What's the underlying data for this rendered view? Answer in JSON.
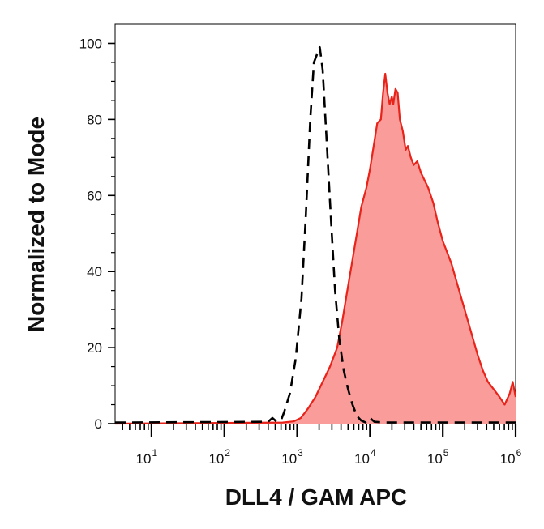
{
  "chart_data": {
    "type": "area",
    "xlabel": "DLL4 / GAM APC",
    "ylabel": "Normalized to Mode",
    "x_scale": "log",
    "xlim": [
      0.5,
      6
    ],
    "ylim": [
      0,
      105
    ],
    "x_ticks": [
      {
        "base": "10",
        "exp": "1"
      },
      {
        "base": "10",
        "exp": "2"
      },
      {
        "base": "10",
        "exp": "3"
      },
      {
        "base": "10",
        "exp": "4"
      },
      {
        "base": "10",
        "exp": "5"
      },
      {
        "base": "10",
        "exp": "6"
      }
    ],
    "y_ticks": [
      "0",
      "20",
      "40",
      "60",
      "80",
      "100"
    ],
    "grid": false,
    "legend": "none",
    "series": [
      {
        "style": "dashed-black-outline",
        "color": "#000000",
        "points": [
          [
            0.5,
            0.3
          ],
          [
            2.6,
            0.5
          ],
          [
            2.66,
            1.5
          ],
          [
            2.72,
            0.5
          ],
          [
            2.78,
            1
          ],
          [
            2.82,
            3
          ],
          [
            2.9,
            8
          ],
          [
            2.98,
            17
          ],
          [
            3.06,
            33
          ],
          [
            3.12,
            55
          ],
          [
            3.18,
            80
          ],
          [
            3.23,
            95
          ],
          [
            3.27,
            97
          ],
          [
            3.31,
            99
          ],
          [
            3.35,
            93
          ],
          [
            3.4,
            76
          ],
          [
            3.46,
            55
          ],
          [
            3.52,
            35
          ],
          [
            3.58,
            22
          ],
          [
            3.64,
            14
          ],
          [
            3.7,
            9
          ],
          [
            3.76,
            5
          ],
          [
            3.82,
            2
          ],
          [
            3.88,
            0.8
          ],
          [
            3.94,
            0.3
          ],
          [
            4.0,
            1.5
          ],
          [
            4.06,
            0.5
          ],
          [
            4.2,
            0.3
          ],
          [
            6.0,
            0.3
          ]
        ]
      },
      {
        "style": "filled-red",
        "color": "#e8231a",
        "fill": "#fa9c9a",
        "points": [
          [
            0.5,
            0
          ],
          [
            2.8,
            0.3
          ],
          [
            2.95,
            0.6
          ],
          [
            3.05,
            1.5
          ],
          [
            3.15,
            4
          ],
          [
            3.25,
            7
          ],
          [
            3.35,
            11
          ],
          [
            3.45,
            15
          ],
          [
            3.55,
            20
          ],
          [
            3.62,
            27
          ],
          [
            3.68,
            34
          ],
          [
            3.75,
            42
          ],
          [
            3.82,
            50
          ],
          [
            3.88,
            57
          ],
          [
            3.95,
            62
          ],
          [
            4.0,
            67
          ],
          [
            4.05,
            73
          ],
          [
            4.1,
            79
          ],
          [
            4.15,
            80
          ],
          [
            4.18,
            87
          ],
          [
            4.21,
            92
          ],
          [
            4.24,
            87
          ],
          [
            4.27,
            84
          ],
          [
            4.3,
            86
          ],
          [
            4.32,
            84
          ],
          [
            4.35,
            88
          ],
          [
            4.38,
            87
          ],
          [
            4.41,
            80
          ],
          [
            4.45,
            77
          ],
          [
            4.49,
            72
          ],
          [
            4.52,
            73
          ],
          [
            4.56,
            70
          ],
          [
            4.6,
            68
          ],
          [
            4.65,
            69
          ],
          [
            4.7,
            66
          ],
          [
            4.75,
            64
          ],
          [
            4.8,
            62
          ],
          [
            4.87,
            58
          ],
          [
            4.93,
            53
          ],
          [
            5.0,
            48
          ],
          [
            5.06,
            45
          ],
          [
            5.12,
            42
          ],
          [
            5.18,
            38
          ],
          [
            5.24,
            34
          ],
          [
            5.3,
            30
          ],
          [
            5.36,
            26
          ],
          [
            5.42,
            22
          ],
          [
            5.48,
            18
          ],
          [
            5.55,
            14
          ],
          [
            5.62,
            11
          ],
          [
            5.7,
            9
          ],
          [
            5.78,
            7
          ],
          [
            5.85,
            5
          ],
          [
            5.92,
            8
          ],
          [
            5.96,
            11
          ],
          [
            6.0,
            7
          ]
        ]
      }
    ]
  }
}
